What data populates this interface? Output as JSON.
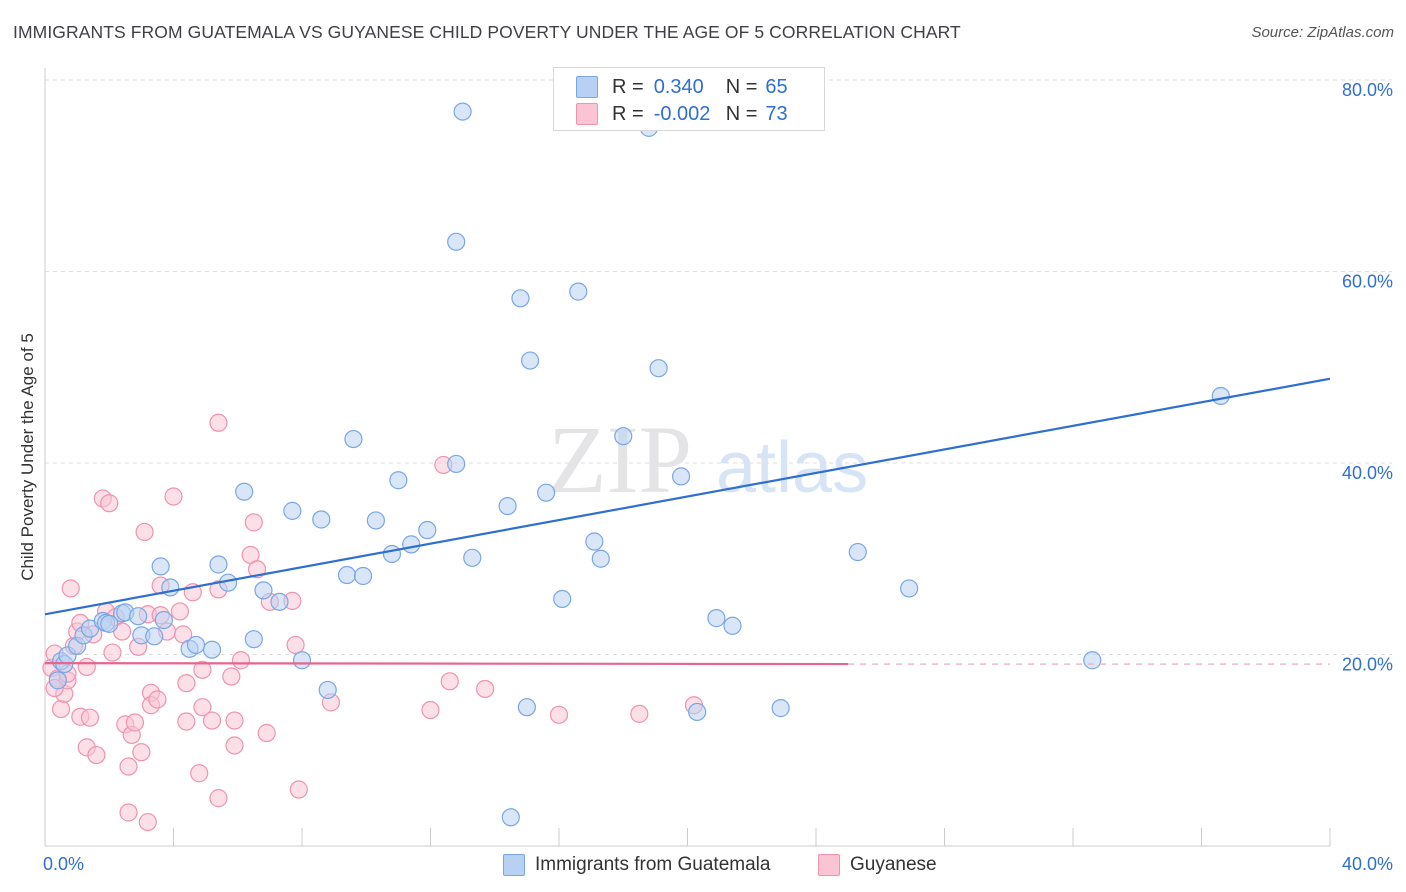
{
  "header": {
    "title": "IMMIGRANTS FROM GUATEMALA VS GUYANESE CHILD POVERTY UNDER THE AGE OF 5 CORRELATION CHART",
    "source": "Source: ZipAtlas.com"
  },
  "legend": {
    "r_label": "R =",
    "n_label": "N =",
    "series": [
      {
        "name": "Immigrants from Guatemala",
        "r": "0.340",
        "n": "65"
      },
      {
        "name": "Guyanese",
        "r": "-0.002",
        "n": "73"
      }
    ]
  },
  "watermark": {
    "zip": "ZIP",
    "atlas": "atlas"
  },
  "colors": {
    "blue_fill": "#b8d1f3",
    "blue_stroke": "#7aa7e3",
    "blue_line": "#2f6fd0",
    "pink_fill": "#fac4d4",
    "pink_stroke": "#ef93b0",
    "pink_line": "#e8658f",
    "tick_label": "#2f6fd0",
    "grid": "#dddddd"
  },
  "chart_data": {
    "type": "scatter",
    "xlabel": "",
    "ylabel": "Child Poverty Under the Age of 5",
    "xlim": [
      0,
      40
    ],
    "ylim": [
      0,
      80
    ],
    "x_tick_labels": [
      {
        "value": 0,
        "label": "0.0%"
      },
      {
        "value": 40,
        "label": "40.0%"
      }
    ],
    "y_tick_labels": [
      {
        "value": 20,
        "label": "20.0%"
      },
      {
        "value": 40,
        "label": "40.0%"
      },
      {
        "value": 60,
        "label": "60.0%"
      },
      {
        "value": 80,
        "label": "80.0%"
      }
    ],
    "grid": "horizontal dashed",
    "legend_position": "top-center",
    "series": [
      {
        "name": "Immigrants from Guatemala",
        "color": "#7aa7e3",
        "trend": {
          "x0": 0,
          "y0": 24.2,
          "x1": 40,
          "y1": 48.8
        },
        "points": [
          [
            0.4,
            17.3
          ],
          [
            0.5,
            19.3
          ],
          [
            0.6,
            19.0
          ],
          [
            0.7,
            19.9
          ],
          [
            1.0,
            20.9
          ],
          [
            1.2,
            22.0
          ],
          [
            1.4,
            22.7
          ],
          [
            1.8,
            23.5
          ],
          [
            1.9,
            23.3
          ],
          [
            2.4,
            24.3
          ],
          [
            2.5,
            24.4
          ],
          [
            2.0,
            23.2
          ],
          [
            2.9,
            24.0
          ],
          [
            3.0,
            22.0
          ],
          [
            3.4,
            21.9
          ],
          [
            3.6,
            29.2
          ],
          [
            3.7,
            23.6
          ],
          [
            3.9,
            27.0
          ],
          [
            4.5,
            20.6
          ],
          [
            4.7,
            21.0
          ],
          [
            5.2,
            20.5
          ],
          [
            5.4,
            29.4
          ],
          [
            5.7,
            27.5
          ],
          [
            6.2,
            37.0
          ],
          [
            6.5,
            21.6
          ],
          [
            6.8,
            26.7
          ],
          [
            7.3,
            25.5
          ],
          [
            7.7,
            35.0
          ],
          [
            8.0,
            19.4
          ],
          [
            8.6,
            34.1
          ],
          [
            8.8,
            16.3
          ],
          [
            9.4,
            28.3
          ],
          [
            9.6,
            42.5
          ],
          [
            9.9,
            28.2
          ],
          [
            10.3,
            34.0
          ],
          [
            10.8,
            30.5
          ],
          [
            11.4,
            31.5
          ],
          [
            11.0,
            38.2
          ],
          [
            11.9,
            33.0
          ],
          [
            12.8,
            63.1
          ],
          [
            12.8,
            39.9
          ],
          [
            13.0,
            76.7
          ],
          [
            13.3,
            30.1
          ],
          [
            14.4,
            35.5
          ],
          [
            14.5,
            3.0
          ],
          [
            14.8,
            57.2
          ],
          [
            15.0,
            14.5
          ],
          [
            15.1,
            50.7
          ],
          [
            15.6,
            36.9
          ],
          [
            16.1,
            25.8
          ],
          [
            16.6,
            57.9
          ],
          [
            17.1,
            31.8
          ],
          [
            17.3,
            30.0
          ],
          [
            18.0,
            42.8
          ],
          [
            18.8,
            75.0
          ],
          [
            19.1,
            49.9
          ],
          [
            19.8,
            38.6
          ],
          [
            20.3,
            14.0
          ],
          [
            20.9,
            23.8
          ],
          [
            21.4,
            23.0
          ],
          [
            22.9,
            14.4
          ],
          [
            25.3,
            30.7
          ],
          [
            26.9,
            26.9
          ],
          [
            32.6,
            19.4
          ],
          [
            36.6,
            47.0
          ]
        ]
      },
      {
        "name": "Guyanese",
        "color": "#ef93b0",
        "trend": {
          "x0": 0,
          "y0": 19.1,
          "x1": 25,
          "y1": 19.0,
          "dash_to_x": 40
        },
        "points": [
          [
            0.2,
            18.6
          ],
          [
            0.3,
            20.1
          ],
          [
            0.4,
            17.5
          ],
          [
            0.5,
            14.3
          ],
          [
            0.6,
            15.9
          ],
          [
            0.7,
            17.3
          ],
          [
            0.7,
            18.0
          ],
          [
            0.8,
            26.9
          ],
          [
            0.9,
            20.9
          ],
          [
            1.0,
            22.4
          ],
          [
            1.1,
            23.3
          ],
          [
            1.1,
            13.5
          ],
          [
            1.3,
            18.7
          ],
          [
            1.3,
            10.3
          ],
          [
            1.4,
            13.4
          ],
          [
            1.5,
            22.1
          ],
          [
            1.6,
            9.5
          ],
          [
            1.8,
            36.3
          ],
          [
            1.9,
            24.5
          ],
          [
            2.0,
            35.8
          ],
          [
            2.1,
            20.2
          ],
          [
            2.2,
            23.9
          ],
          [
            2.4,
            22.4
          ],
          [
            2.5,
            12.7
          ],
          [
            2.6,
            8.3
          ],
          [
            2.6,
            3.5
          ],
          [
            2.7,
            11.6
          ],
          [
            2.8,
            12.9
          ],
          [
            2.9,
            20.8
          ],
          [
            3.0,
            9.8
          ],
          [
            3.1,
            32.8
          ],
          [
            3.2,
            2.5
          ],
          [
            3.2,
            24.2
          ],
          [
            3.3,
            16.0
          ],
          [
            3.3,
            14.7
          ],
          [
            3.5,
            15.3
          ],
          [
            3.6,
            27.2
          ],
          [
            3.6,
            24.1
          ],
          [
            3.8,
            22.4
          ],
          [
            4.0,
            36.5
          ],
          [
            4.2,
            24.5
          ],
          [
            4.3,
            22.1
          ],
          [
            4.4,
            17.0
          ],
          [
            4.4,
            13.0
          ],
          [
            4.6,
            26.5
          ],
          [
            4.8,
            7.6
          ],
          [
            4.9,
            18.4
          ],
          [
            4.9,
            14.5
          ],
          [
            5.2,
            13.1
          ],
          [
            5.4,
            44.2
          ],
          [
            5.4,
            26.8
          ],
          [
            5.4,
            5.0
          ],
          [
            5.8,
            17.7
          ],
          [
            5.9,
            13.1
          ],
          [
            5.9,
            10.5
          ],
          [
            6.1,
            19.4
          ],
          [
            6.4,
            30.4
          ],
          [
            6.5,
            33.8
          ],
          [
            6.6,
            28.9
          ],
          [
            6.9,
            11.8
          ],
          [
            7.0,
            25.5
          ],
          [
            7.7,
            25.6
          ],
          [
            7.8,
            21.0
          ],
          [
            7.9,
            5.9
          ],
          [
            8.9,
            15.0
          ],
          [
            12.4,
            39.8
          ],
          [
            12.6,
            17.2
          ],
          [
            13.7,
            16.4
          ],
          [
            16.0,
            13.7
          ],
          [
            18.5,
            13.8
          ],
          [
            20.2,
            14.7
          ],
          [
            12.0,
            14.2
          ],
          [
            0.3,
            16.5
          ]
        ]
      }
    ]
  }
}
